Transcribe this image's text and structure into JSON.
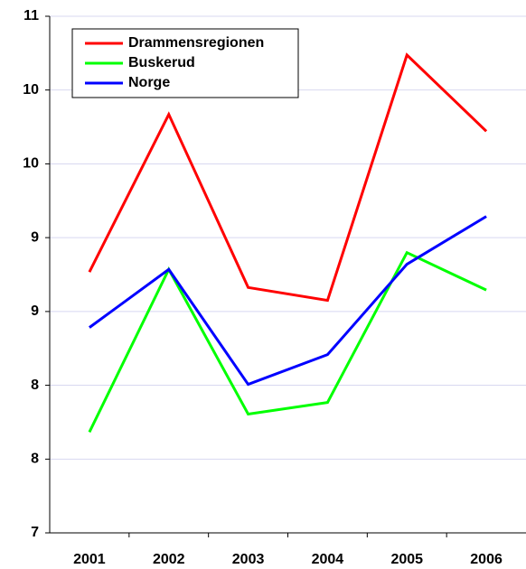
{
  "chart_data": {
    "type": "line",
    "categories": [
      "2001",
      "2002",
      "2003",
      "2004",
      "2005",
      "2006"
    ],
    "series": [
      {
        "name": "Drammensregionen",
        "color": "#ff0000",
        "values": [
          9.02,
          10.24,
          8.9,
          8.8,
          10.7,
          10.11
        ]
      },
      {
        "name": "Buskerud",
        "color": "#00ff00",
        "values": [
          7.78,
          9.04,
          7.92,
          8.01,
          9.17,
          8.88
        ]
      },
      {
        "name": "Norge",
        "color": "#0000ff",
        "values": [
          8.59,
          9.04,
          8.15,
          8.38,
          9.08,
          9.45
        ]
      }
    ],
    "ylim": [
      7,
      11
    ],
    "yticks": [
      {
        "value": 7,
        "label": "7"
      },
      {
        "value": 7.571,
        "label": "8"
      },
      {
        "value": 8.143,
        "label": "8"
      },
      {
        "value": 8.714,
        "label": "9"
      },
      {
        "value": 9.286,
        "label": "9"
      },
      {
        "value": 9.857,
        "label": "10"
      },
      {
        "value": 10.429,
        "label": "10"
      },
      {
        "value": 11,
        "label": "11"
      }
    ],
    "grid": true,
    "legend": "upper left"
  }
}
